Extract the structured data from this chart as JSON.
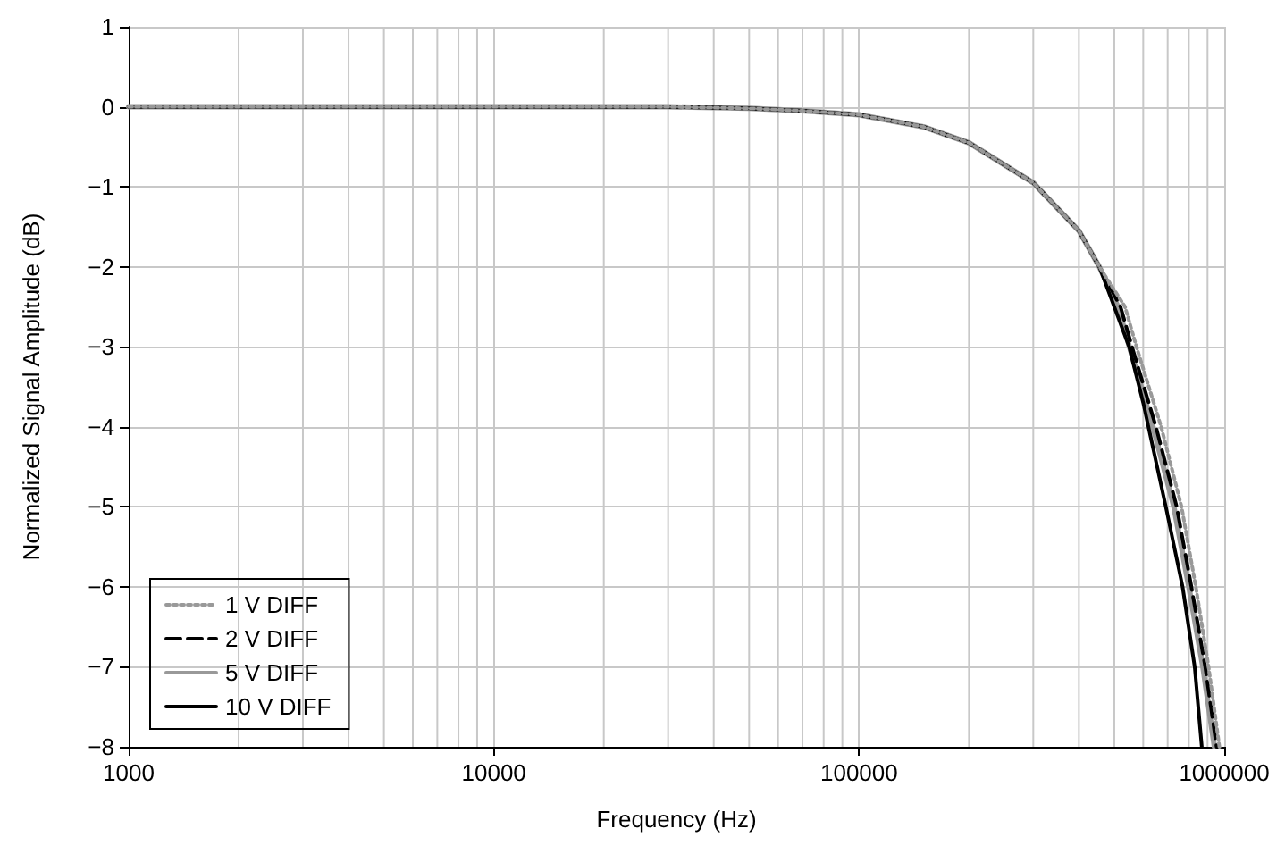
{
  "chart_data": {
    "type": "line",
    "xlabel": "Frequency (Hz)",
    "ylabel": "Normalized Signal Amplitude (dB)",
    "log": "x",
    "grid": true,
    "legend": "bottom left",
    "marker": "none",
    "xlim": [
      1000,
      1000000
    ],
    "xticks": [
      1000,
      {
        "value": 2000,
        "label": null
      },
      {
        "value": 3000,
        "label": null
      },
      {
        "value": 4000,
        "label": null
      },
      {
        "value": 5000,
        "label": null
      },
      {
        "value": 6000,
        "label": null
      },
      {
        "value": 7000,
        "label": null
      },
      {
        "value": 8000,
        "label": null
      },
      {
        "value": 9000,
        "label": null
      },
      10000,
      {
        "value": 20000,
        "label": null
      },
      {
        "value": 30000,
        "label": null
      },
      {
        "value": 40000,
        "label": null
      },
      {
        "value": 50000,
        "label": null
      },
      {
        "value": 60000,
        "label": null
      },
      {
        "value": 70000,
        "label": null
      },
      {
        "value": 80000,
        "label": null
      },
      {
        "value": 90000,
        "label": null
      },
      100000,
      {
        "value": 200000,
        "label": null
      },
      {
        "value": 300000,
        "label": null
      },
      {
        "value": 400000,
        "label": null
      },
      {
        "value": 500000,
        "label": null
      },
      {
        "value": 600000,
        "label": null
      },
      {
        "value": 700000,
        "label": null
      },
      {
        "value": 800000,
        "label": null
      },
      {
        "value": 900000,
        "label": null
      },
      1000000
    ],
    "ylim": [
      -8,
      1
    ],
    "yticks": [
      -8,
      -7,
      -6,
      -5,
      -4,
      -3,
      -2,
      -1,
      0,
      1
    ],
    "series": [
      {
        "name": "1 V DIFF",
        "color": "#999999",
        "line_style": "dotted",
        "x": [
          1000,
          2000,
          5000,
          10000,
          20000,
          30000,
          50000,
          70000,
          100000,
          150000,
          200000,
          300000,
          400000,
          455000,
          535000,
          575000,
          672000,
          764000,
          836000,
          906000,
          970000
        ],
        "values": [
          0,
          0,
          0,
          0,
          0,
          0,
          -0.02,
          -0.05,
          -0.1,
          -0.25,
          -0.45,
          -0.95,
          -1.55,
          -2.0,
          -2.5,
          -3,
          -4,
          -5,
          -6,
          -7,
          -8
        ]
      },
      {
        "name": "2 V DIFF",
        "color": "#000000",
        "line_style": "dashed",
        "x": [
          1000,
          2000,
          5000,
          10000,
          20000,
          30000,
          50000,
          70000,
          100000,
          150000,
          200000,
          300000,
          400000,
          455000,
          520000,
          559000,
          650000,
          741000,
          813000,
          887000,
          953000
        ],
        "values": [
          0,
          0,
          0,
          0,
          0,
          0,
          -0.02,
          -0.05,
          -0.1,
          -0.25,
          -0.45,
          -0.95,
          -1.55,
          -2.0,
          -2.5,
          -3,
          -4,
          -5,
          -6,
          -7,
          -8
        ]
      },
      {
        "name": "5 V DIFF",
        "color": "#999999",
        "line_style": "solid",
        "x": [
          1000,
          2000,
          5000,
          10000,
          20000,
          30000,
          50000,
          70000,
          100000,
          150000,
          200000,
          300000,
          400000,
          455000,
          512000,
          550000,
          638000,
          728000,
          800000,
          874000,
          940000
        ],
        "values": [
          0,
          0,
          0,
          0,
          0,
          0,
          -0.02,
          -0.05,
          -0.1,
          -0.25,
          -0.45,
          -0.95,
          -1.55,
          -2.0,
          -2.5,
          -3,
          -4,
          -5,
          -6,
          -7,
          -8
        ]
      },
      {
        "name": "10 V DIFF",
        "color": "#000000",
        "line_style": "solid",
        "x": [
          1000,
          2000,
          5000,
          10000,
          20000,
          30000,
          50000,
          70000,
          100000,
          150000,
          200000,
          300000,
          400000,
          455000,
          549000,
          600000,
          692000,
          769000,
          830000,
          868000
        ],
        "values": [
          0,
          0,
          0,
          0,
          0,
          0,
          -0.02,
          -0.05,
          -0.1,
          -0.25,
          -0.45,
          -0.95,
          -1.55,
          -2.0,
          -3,
          -3.7,
          -5,
          -6,
          -7,
          -8
        ]
      }
    ]
  }
}
